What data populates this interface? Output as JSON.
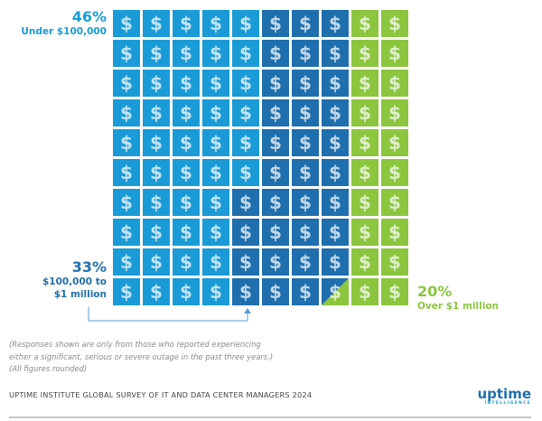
{
  "chart_data": {
    "type": "waffle",
    "grid": {
      "rows": 10,
      "cols": 10
    },
    "icon": "dollar-sign-icon",
    "categories": [
      {
        "name": "Under $100,000",
        "value": 46,
        "label": "46%",
        "color": "#1a9bd7"
      },
      {
        "name": "$100,000 to $1 million",
        "value": 33,
        "label": "33%",
        "color": "#1f6fae"
      },
      {
        "name": "Over $1 million",
        "value": 20,
        "label": "20%",
        "color": "#8cc63f"
      }
    ],
    "cell_assignment": [
      [
        0,
        0,
        0,
        0,
        0,
        1,
        1,
        1,
        2,
        2
      ],
      [
        0,
        0,
        0,
        0,
        0,
        1,
        1,
        1,
        2,
        2
      ],
      [
        0,
        0,
        0,
        0,
        0,
        1,
        1,
        1,
        2,
        2
      ],
      [
        0,
        0,
        0,
        0,
        0,
        1,
        1,
        1,
        2,
        2
      ],
      [
        0,
        0,
        0,
        0,
        0,
        1,
        1,
        1,
        2,
        2
      ],
      [
        0,
        0,
        0,
        0,
        0,
        1,
        1,
        1,
        2,
        2
      ],
      [
        0,
        0,
        0,
        0,
        1,
        1,
        1,
        1,
        2,
        2
      ],
      [
        0,
        0,
        0,
        0,
        1,
        1,
        1,
        1,
        2,
        2
      ],
      [
        0,
        0,
        0,
        0,
        1,
        1,
        1,
        1,
        2,
        2
      ],
      [
        0,
        0,
        0,
        0,
        1,
        1,
        1,
        "split-1-2",
        2,
        2
      ]
    ],
    "note": "Split cell shared between $100,000 to $1 million and Over $1 million (figures rounded)"
  },
  "labels": {
    "under": {
      "pct": "46%",
      "text": "Under $100,000"
    },
    "mid": {
      "pct": "33%",
      "line1": "$100,000 to",
      "line2": "$1 million"
    },
    "over": {
      "pct": "20%",
      "text": "Over $1 million"
    }
  },
  "notes": {
    "line1": "(Responses shown are only from those who reported experiencing",
    "line2": "either a significant, serious or severe outage in the past three years.)",
    "line3": "(All figures rounded)"
  },
  "footer": {
    "title": "UPTIME INSTITUTE GLOBAL SURVEY OF IT AND DATA CENTER MANAGERS 2024",
    "logo_brand": "uptime",
    "logo_sub": "INTELLIGENCE"
  }
}
